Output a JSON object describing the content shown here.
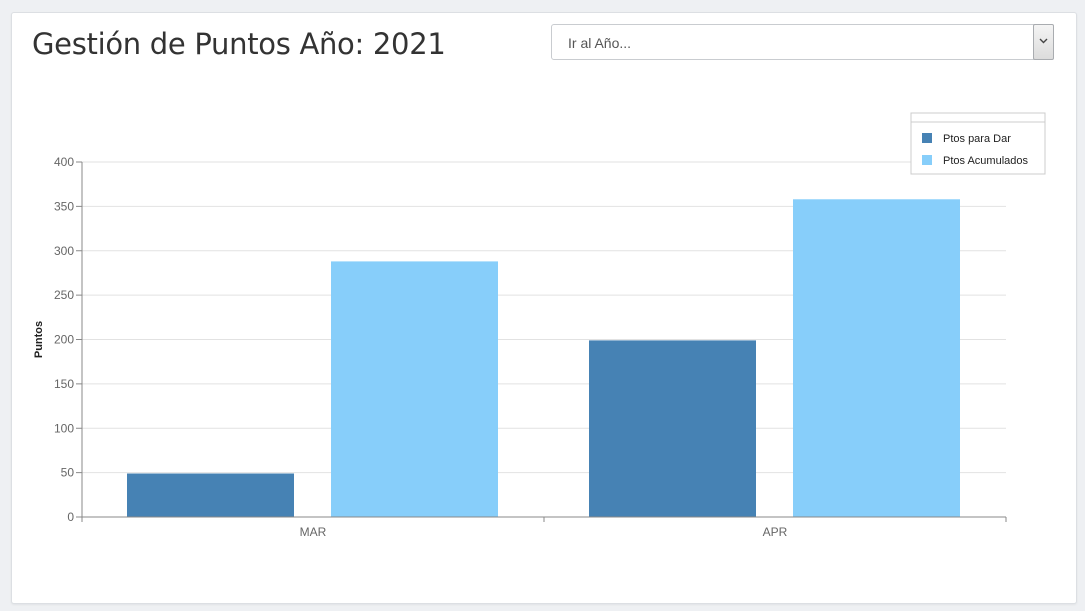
{
  "header": {
    "title": "Gestión de Puntos Año: 2021"
  },
  "year_select": {
    "selected": "Ir al Año...",
    "icon": "chevron-down-icon"
  },
  "colors": {
    "series_1": "#4682b4",
    "series_2": "#87cefa",
    "grid": "#e2e2e2",
    "axis": "#888888"
  },
  "chart_data": {
    "type": "bar",
    "categories": [
      "MAR",
      "APR"
    ],
    "series": [
      {
        "name": "Ptos para Dar",
        "values": [
          49,
          199
        ],
        "color": "#4682b4"
      },
      {
        "name": "Ptos Acumulados",
        "values": [
          288,
          358
        ],
        "color": "#87cefa"
      }
    ],
    "title": "",
    "xlabel": "",
    "ylabel": "Puntos",
    "ylim": [
      0,
      400
    ],
    "yticks": [
      0,
      50,
      100,
      150,
      200,
      250,
      300,
      350,
      400
    ],
    "grid": true,
    "legend_position": "top-right"
  }
}
